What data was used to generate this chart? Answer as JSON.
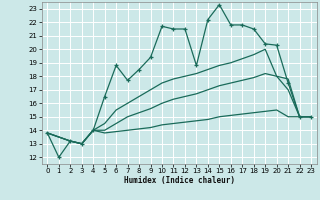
{
  "background_color": "#cce8e8",
  "grid_color": "#ffffff",
  "line_color": "#1a6b5a",
  "xlabel": "Humidex (Indice chaleur)",
  "xlim": [
    -0.5,
    23.5
  ],
  "ylim": [
    11.5,
    23.5
  ],
  "xticks": [
    0,
    1,
    2,
    3,
    4,
    5,
    6,
    7,
    8,
    9,
    10,
    11,
    12,
    13,
    14,
    15,
    16,
    17,
    18,
    19,
    20,
    21,
    22,
    23
  ],
  "yticks": [
    12,
    13,
    14,
    15,
    16,
    17,
    18,
    19,
    20,
    21,
    22,
    23
  ],
  "lines": [
    {
      "x": [
        0,
        1,
        2,
        3,
        4,
        5,
        6,
        7,
        8,
        9,
        10,
        11,
        12,
        13,
        14,
        15,
        16,
        17,
        18,
        19,
        20,
        21,
        22,
        23
      ],
      "y": [
        13.8,
        12.0,
        13.2,
        13.0,
        14.0,
        16.5,
        18.8,
        17.7,
        18.5,
        19.4,
        21.7,
        21.5,
        21.5,
        18.8,
        22.2,
        23.3,
        21.8,
        21.8,
        21.5,
        20.4,
        20.3,
        17.5,
        15.0,
        15.0
      ],
      "marker": "+"
    },
    {
      "x": [
        0,
        2,
        3,
        4,
        5,
        6,
        7,
        8,
        9,
        10,
        11,
        12,
        13,
        14,
        15,
        16,
        17,
        18,
        19,
        20,
        21,
        22,
        23
      ],
      "y": [
        13.8,
        13.2,
        13.0,
        14.0,
        14.5,
        15.5,
        16.0,
        16.5,
        17.0,
        17.5,
        17.8,
        18.0,
        18.2,
        18.5,
        18.8,
        19.0,
        19.3,
        19.6,
        20.0,
        18.0,
        17.8,
        15.0,
        15.0
      ],
      "marker": null
    },
    {
      "x": [
        0,
        2,
        3,
        4,
        5,
        6,
        7,
        8,
        9,
        10,
        11,
        12,
        13,
        14,
        15,
        16,
        17,
        18,
        19,
        20,
        21,
        22,
        23
      ],
      "y": [
        13.8,
        13.2,
        13.0,
        14.0,
        14.0,
        14.5,
        15.0,
        15.3,
        15.6,
        16.0,
        16.3,
        16.5,
        16.7,
        17.0,
        17.3,
        17.5,
        17.7,
        17.9,
        18.2,
        18.0,
        17.0,
        15.0,
        15.0
      ],
      "marker": null
    },
    {
      "x": [
        0,
        2,
        3,
        4,
        5,
        6,
        7,
        8,
        9,
        10,
        11,
        12,
        13,
        14,
        15,
        16,
        17,
        18,
        19,
        20,
        21,
        22,
        23
      ],
      "y": [
        13.8,
        13.2,
        13.0,
        14.0,
        13.8,
        13.9,
        14.0,
        14.1,
        14.2,
        14.4,
        14.5,
        14.6,
        14.7,
        14.8,
        15.0,
        15.1,
        15.2,
        15.3,
        15.4,
        15.5,
        15.0,
        15.0,
        15.0
      ],
      "marker": null
    }
  ]
}
